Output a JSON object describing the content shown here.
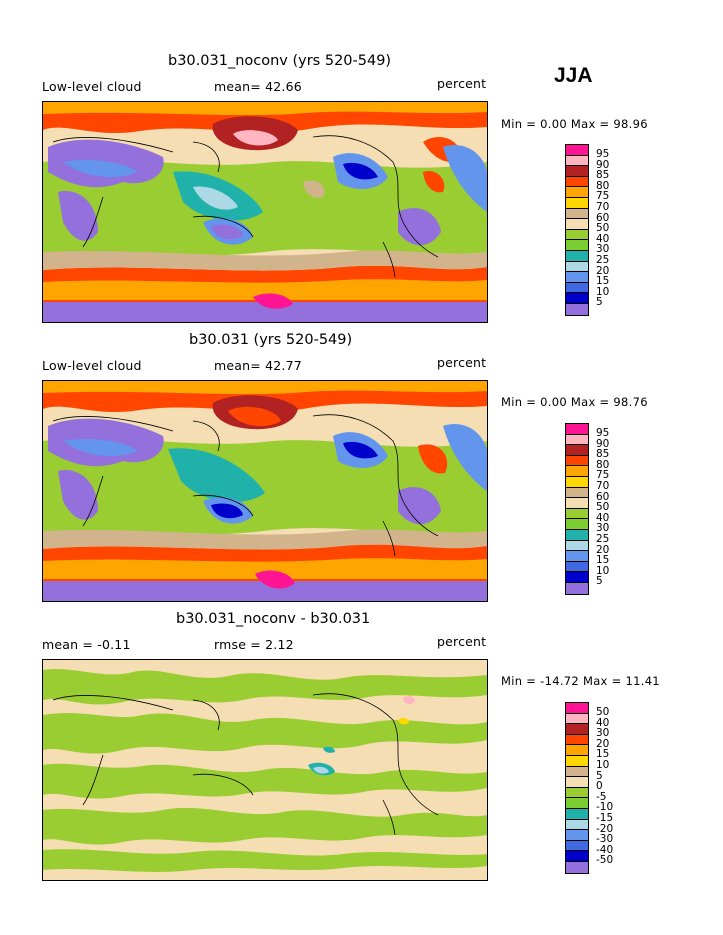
{
  "season": "JJA",
  "panels": [
    {
      "title": "b30.031_noconv (yrs 520-549)",
      "left": "Low-level cloud",
      "center": "mean=   42.66",
      "right": "percent",
      "stats": "Min =    0.00 Max =   98.96"
    },
    {
      "title": "b30.031 (yrs 520-549)",
      "left": "Low-level cloud",
      "center": "mean=   42.77",
      "right": "percent",
      "stats": "Min =    0.00 Max =   98.76"
    },
    {
      "title": "b30.031_noconv - b30.031",
      "left": "mean =   -0.11",
      "center": "rmse =    2.12",
      "right": "percent",
      "stats": "Min = -14.72 Max =   11.41"
    }
  ],
  "legends": {
    "abs": {
      "labels": [
        "95",
        "90",
        "85",
        "80",
        "75",
        "70",
        "60",
        "50",
        "40",
        "30",
        "25",
        "20",
        "15",
        "10",
        "5"
      ],
      "colors": [
        "#ff1493",
        "#ffb6c1",
        "#b22222",
        "#ff4500",
        "#ffa500",
        "#ffd700",
        "#d2b48c",
        "#f5deb3",
        "#9acd32",
        "#7ccd32",
        "#20b2aa",
        "#add8e6",
        "#6495ed",
        "#4169e1",
        "#0000cd",
        "#9370db"
      ]
    },
    "diff": {
      "labels": [
        "50",
        "40",
        "30",
        "20",
        "15",
        "10",
        "5",
        "0",
        "-5",
        "-10",
        "-15",
        "-20",
        "-30",
        "-40",
        "-50"
      ],
      "colors": [
        "#ff1493",
        "#ffb6c1",
        "#b22222",
        "#ff4500",
        "#ffa500",
        "#ffd700",
        "#d2b48c",
        "#f5deb3",
        "#9acd32",
        "#7ccd32",
        "#20b2aa",
        "#add8e6",
        "#6495ed",
        "#4169e1",
        "#0000cd",
        "#9370db"
      ]
    }
  }
}
